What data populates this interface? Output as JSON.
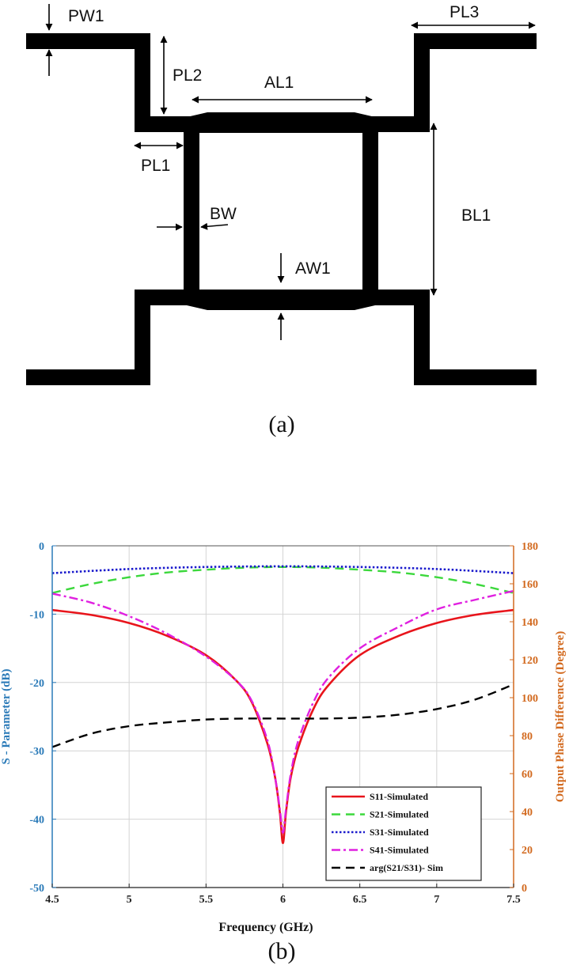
{
  "diagram": {
    "labels": {
      "pw1": "PW1",
      "pl2": "PL2",
      "pl3": "PL3",
      "al1": "AL1",
      "pl1": "PL1",
      "bw": "BW",
      "bl1": "BL1",
      "aw1": "AW1"
    },
    "caption": "(a)"
  },
  "chart_caption": "(b)",
  "chart_data": {
    "type": "line",
    "xlabel": "Frequency (GHz)",
    "ylabel": "S - Parameter (dB)",
    "y2label": "Output Phase Difference (Degree)",
    "xlim": [
      4.5,
      7.5
    ],
    "ylim": [
      -50,
      0
    ],
    "y2lim": [
      0,
      180
    ],
    "xticks": [
      "4.5",
      "5",
      "5.5",
      "6",
      "6.5",
      "7",
      "7.5"
    ],
    "yticks": [
      "0",
      "-10",
      "-20",
      "-30",
      "-40",
      "-50"
    ],
    "y2ticks": [
      "180",
      "160",
      "140",
      "120",
      "100",
      "80",
      "60",
      "40",
      "20",
      "0"
    ],
    "grid": true,
    "legend_position": "bottom-right",
    "series": [
      {
        "name": "S11-Simulated",
        "axis": "left",
        "color": "#e8141b",
        "dash": "solid",
        "x": [
          4.5,
          4.75,
          5.0,
          5.25,
          5.5,
          5.7,
          5.8,
          5.9,
          5.95,
          5.98,
          6.0,
          6.02,
          6.05,
          6.1,
          6.2,
          6.3,
          6.5,
          6.75,
          7.0,
          7.25,
          7.5
        ],
        "y": [
          -9.4,
          -10.1,
          -11.3,
          -13.2,
          -16.0,
          -19.8,
          -23.0,
          -29.0,
          -34.0,
          -39.0,
          -43.5,
          -39.0,
          -34.0,
          -29.5,
          -23.8,
          -20.3,
          -16.0,
          -13.2,
          -11.3,
          -10.1,
          -9.4
        ]
      },
      {
        "name": "S21-Simulated",
        "axis": "left",
        "color": "#3cd83c",
        "dash": "dashed",
        "x": [
          4.5,
          4.75,
          5.0,
          5.25,
          5.5,
          5.75,
          6.0,
          6.25,
          6.5,
          6.75,
          7.0,
          7.25,
          7.5
        ],
        "y": [
          -6.9,
          -5.6,
          -4.6,
          -3.9,
          -3.5,
          -3.2,
          -3.1,
          -3.2,
          -3.5,
          -3.9,
          -4.6,
          -5.6,
          -6.9
        ]
      },
      {
        "name": "S31-Simulated",
        "axis": "left",
        "color": "#1a1acc",
        "dash": "dotted",
        "x": [
          4.5,
          5.0,
          5.5,
          6.0,
          6.5,
          7.0,
          7.5
        ],
        "y": [
          -4.0,
          -3.4,
          -3.1,
          -3.0,
          -3.1,
          -3.4,
          -4.0
        ]
      },
      {
        "name": "S41-Simulated",
        "axis": "left",
        "color": "#e020e0",
        "dash": "dash-dot",
        "x": [
          4.5,
          4.75,
          5.0,
          5.25,
          5.5,
          5.7,
          5.8,
          5.9,
          5.95,
          5.98,
          6.0,
          6.02,
          6.05,
          6.1,
          6.2,
          6.3,
          6.5,
          6.75,
          7.0,
          7.25,
          7.5
        ],
        "y": [
          -7.0,
          -8.3,
          -10.3,
          -12.9,
          -16.2,
          -19.8,
          -22.8,
          -28.5,
          -34.0,
          -38.5,
          -42.0,
          -38.5,
          -33.5,
          -28.5,
          -22.8,
          -19.2,
          -15.0,
          -11.9,
          -9.3,
          -7.9,
          -6.6
        ]
      },
      {
        "name": "arg(S21/S31)- Sim",
        "axis": "right",
        "color": "#000000",
        "dash": "dashed",
        "x": [
          4.5,
          4.75,
          5.0,
          5.25,
          5.5,
          5.75,
          6.0,
          6.25,
          6.5,
          6.75,
          7.0,
          7.25,
          7.5
        ],
        "y": [
          74,
          81,
          85,
          87,
          88.5,
          89,
          89,
          89,
          89.5,
          91,
          94,
          99,
          107
        ]
      }
    ]
  }
}
